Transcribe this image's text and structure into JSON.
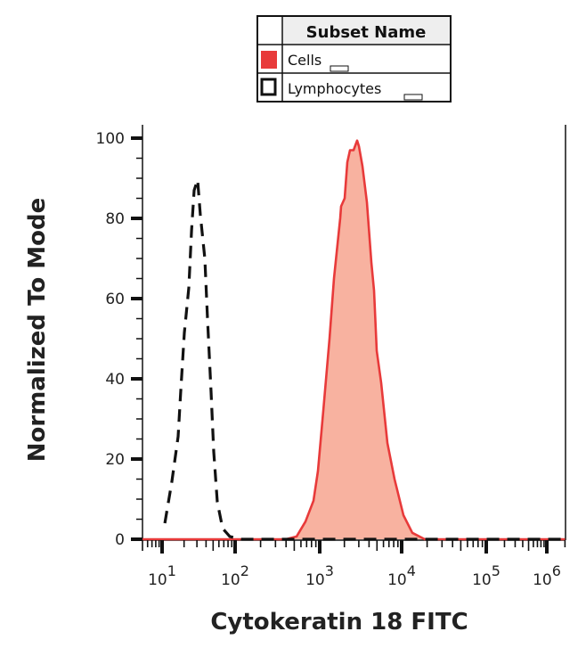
{
  "chart_data": {
    "type": "area",
    "title": "",
    "xlabel": "Cytokeratin 18 FITC",
    "ylabel": "Normalized To Mode",
    "x_scale": "log",
    "xlim": [
      5,
      2000000
    ],
    "ylim": [
      0,
      100
    ],
    "grid": false,
    "x_ticks": [
      {
        "value": 10,
        "base": "10",
        "exp": "1"
      },
      {
        "value": 100,
        "base": "10",
        "exp": "2"
      },
      {
        "value": 1000,
        "base": "10",
        "exp": "3"
      },
      {
        "value": 10000,
        "base": "10",
        "exp": "4"
      },
      {
        "value": 100000,
        "base": "10",
        "exp": "5"
      },
      {
        "value": 1000000,
        "base": "10",
        "exp": "6"
      }
    ],
    "y_ticks": [
      "0",
      "20",
      "40",
      "60",
      "80",
      "100"
    ],
    "legend": {
      "placement": "top",
      "header": "Subset Name",
      "entries": [
        {
          "name": "Cells",
          "style": "filled",
          "color": "#e83a3a"
        },
        {
          "name": "Lymphocytes",
          "style": "dashed-outline",
          "color": "#111111"
        }
      ]
    },
    "series": [
      {
        "name": "Cells",
        "line_color": "#e83a3a",
        "fill_color": "#f8b2a0",
        "dashed": false,
        "points": [
          [
            5,
            0
          ],
          [
            400,
            0
          ],
          [
            532,
            0.7
          ],
          [
            679,
            4.4
          ],
          [
            844,
            9.6
          ],
          [
            953,
            17
          ],
          [
            1105,
            32
          ],
          [
            1318,
            50
          ],
          [
            1493,
            65
          ],
          [
            1778,
            80
          ],
          [
            1823,
            83
          ],
          [
            2015,
            85
          ],
          [
            2173,
            94
          ],
          [
            2343,
            97
          ],
          [
            2590,
            97
          ],
          [
            2862,
            99.4
          ],
          [
            3006,
            98
          ],
          [
            3324,
            93
          ],
          [
            3770,
            84
          ],
          [
            4270,
            69
          ],
          [
            4600,
            62
          ],
          [
            4966,
            47
          ],
          [
            5623,
            39
          ],
          [
            6700,
            24
          ],
          [
            8185,
            15
          ],
          [
            10500,
            6
          ],
          [
            13370,
            1.6
          ],
          [
            18800,
            0
          ],
          [
            2000000,
            0
          ]
        ]
      },
      {
        "name": "Lymphocytes",
        "line_color": "#111111",
        "fill_color": "none",
        "dashed": true,
        "points": [
          [
            10.9,
            4
          ],
          [
            13.6,
            14.4
          ],
          [
            16.6,
            25.6
          ],
          [
            18.0,
            36.7
          ],
          [
            20.2,
            51.5
          ],
          [
            23.2,
            62.7
          ],
          [
            25.3,
            77
          ],
          [
            27.5,
            87
          ],
          [
            30.7,
            89.6
          ],
          [
            33.4,
            81
          ],
          [
            38.5,
            70
          ],
          [
            41.9,
            55
          ],
          [
            46.9,
            36.7
          ],
          [
            51,
            21.8
          ],
          [
            57,
            9.3
          ],
          [
            67.5,
            2.7
          ],
          [
            84.5,
            0.7
          ],
          [
            120,
            0
          ],
          [
            2000000,
            0
          ]
        ]
      }
    ]
  }
}
